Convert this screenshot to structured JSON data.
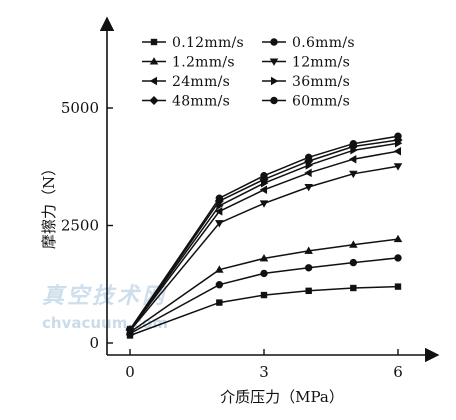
{
  "chart_data": {
    "type": "line",
    "title": "",
    "xlabel": "介质压力（MPa）",
    "ylabel": "摩擦力（N）",
    "xlim": [
      0,
      6
    ],
    "ylim": [
      0,
      5000
    ],
    "xticks": [
      0,
      3,
      6
    ],
    "yticks": [
      0,
      2500,
      5000
    ],
    "x_tick_labels": [
      "0",
      "3",
      "6"
    ],
    "y_tick_labels": [
      "0",
      "2500",
      "5000"
    ],
    "x": [
      0,
      2,
      3,
      4,
      5,
      6
    ],
    "grid": false,
    "legend_placement": "top-left",
    "series": [
      {
        "name": "0.12mm/s",
        "marker": "square",
        "values": [
          160,
          860,
          1020,
          1110,
          1170,
          1200
        ]
      },
      {
        "name": "0.6mm/s",
        "marker": "circle",
        "values": [
          200,
          1240,
          1480,
          1600,
          1710,
          1810
        ]
      },
      {
        "name": "1.2mm/s",
        "marker": "triangle-up",
        "values": [
          230,
          1560,
          1800,
          1960,
          2090,
          2210
        ]
      },
      {
        "name": "12mm/s",
        "marker": "triangle-down",
        "values": [
          260,
          2550,
          2970,
          3320,
          3600,
          3760
        ]
      },
      {
        "name": "24mm/s",
        "marker": "triangle-left",
        "values": [
          270,
          2800,
          3260,
          3620,
          3910,
          4080
        ]
      },
      {
        "name": "36mm/s",
        "marker": "triangle-right",
        "values": [
          280,
          2920,
          3400,
          3780,
          4100,
          4250
        ]
      },
      {
        "name": "48mm/s",
        "marker": "diamond",
        "values": [
          280,
          3020,
          3480,
          3870,
          4180,
          4320
        ]
      },
      {
        "name": "60mm/s",
        "marker": "circle",
        "values": [
          290,
          3080,
          3560,
          3950,
          4240,
          4400
        ]
      }
    ]
  },
  "watermark": {
    "line1": "真空技术网",
    "line2": "chvacuum.com"
  }
}
